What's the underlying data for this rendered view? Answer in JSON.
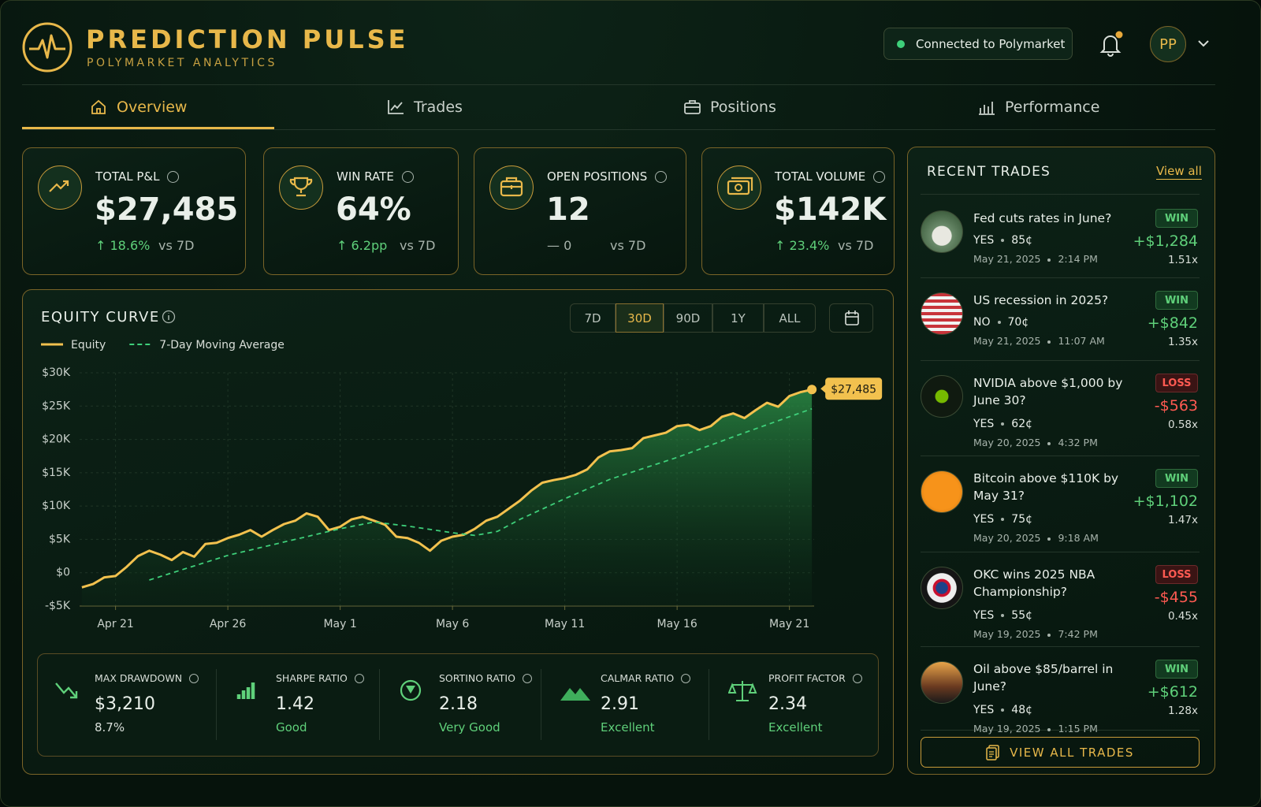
{
  "header": {
    "title": "PREDICTION PULSE",
    "subtitle": "POLYMARKET ANALYTICS",
    "status": "Connected to Polymarket",
    "avatar": "PP"
  },
  "nav": {
    "tabs": [
      "Overview",
      "Trades",
      "Positions",
      "Performance"
    ]
  },
  "kpis": [
    {
      "label": "TOTAL P&L",
      "value": "$27,485",
      "change": "↑ 18.6%",
      "compare": "vs 7D"
    },
    {
      "label": "WIN RATE",
      "value": "64%",
      "change": "↑ 6.2pp",
      "compare": "vs 7D"
    },
    {
      "label": "OPEN POSITIONS",
      "value": "12",
      "change": "— 0",
      "compare": "vs 7D"
    },
    {
      "label": "TOTAL VOLUME",
      "value": "$142K",
      "change": "↑ 23.4%",
      "compare": "vs 7D"
    }
  ],
  "chart_data": {
    "type": "line",
    "title": "EQUITY CURVE",
    "ranges": [
      "7D",
      "30D",
      "90D",
      "1Y",
      "ALL"
    ],
    "selected_range": "30D",
    "xlim": [
      -1.6,
      31.1
    ],
    "xticks": [
      {
        "value": 0,
        "label": "Apr 21"
      },
      {
        "value": 5,
        "label": "Apr 26"
      },
      {
        "value": 10,
        "label": "May 1"
      },
      {
        "value": 15,
        "label": "May 6"
      },
      {
        "value": 20,
        "label": "May 11"
      },
      {
        "value": 25,
        "label": "May 16"
      },
      {
        "value": 30,
        "label": "May 21"
      }
    ],
    "ylim": [
      -5000,
      30000
    ],
    "yticks": [
      {
        "value": -5000,
        "label": "-$5K"
      },
      {
        "value": 0,
        "label": "$0"
      },
      {
        "value": 5000,
        "label": "$5K"
      },
      {
        "value": 10000,
        "label": "$10K"
      },
      {
        "value": 15000,
        "label": "$15K"
      },
      {
        "value": 20000,
        "label": "$20K"
      },
      {
        "value": 25000,
        "label": "$25K"
      },
      {
        "value": 30000,
        "label": "$30K"
      }
    ],
    "grid": true,
    "series": [
      {
        "name": "Equity",
        "color": "#f2c14e",
        "dash": false,
        "area": true,
        "x": [
          -1.5,
          -1,
          -0.5,
          0,
          0.5,
          1,
          1.5,
          2,
          2.5,
          3,
          3.5,
          4,
          4.5,
          5,
          5.5,
          6,
          6.5,
          7,
          7.5,
          8,
          8.5,
          9,
          9.5,
          10,
          10.5,
          11,
          11.5,
          12,
          12.5,
          13,
          13.5,
          14,
          14.5,
          15,
          15.5,
          16,
          16.5,
          17,
          17.5,
          18,
          18.5,
          19,
          19.5,
          20,
          20.5,
          21,
          21.5,
          22,
          22.5,
          23,
          23.5,
          24,
          24.5,
          25,
          25.5,
          26,
          26.5,
          27,
          27.5,
          28,
          28.5,
          29,
          29.5,
          30,
          30.5,
          31
        ],
        "values": [
          -2200,
          -1700,
          -700,
          -500,
          900,
          2500,
          3300,
          2700,
          1900,
          3100,
          2400,
          4300,
          4500,
          5200,
          5700,
          6400,
          5400,
          6400,
          7300,
          7800,
          8900,
          8400,
          6400,
          6900,
          8000,
          8400,
          7800,
          7200,
          5400,
          5200,
          4500,
          3300,
          4800,
          5400,
          5700,
          6600,
          7800,
          8400,
          9600,
          10800,
          12300,
          13500,
          13900,
          14200,
          14700,
          15500,
          17300,
          18200,
          18400,
          18700,
          20200,
          20600,
          21000,
          22000,
          22200,
          21400,
          22000,
          23400,
          23900,
          23200,
          24400,
          25500,
          24900,
          26500,
          27100,
          27485
        ]
      },
      {
        "name": "7-Day Moving Average",
        "color": "#3ecf7a",
        "dash": true,
        "area": false,
        "x": [
          1.5,
          5,
          8,
          10,
          11.5,
          13,
          15,
          16,
          17,
          18,
          20,
          22,
          25,
          28,
          31
        ],
        "values": [
          -1100,
          2600,
          5000,
          6600,
          7600,
          7000,
          6000,
          5600,
          6200,
          8000,
          11100,
          14000,
          17300,
          21000,
          24600
        ]
      }
    ],
    "end_label": "$27,485"
  },
  "metrics": [
    {
      "label": "MAX DRAWDOWN",
      "value": "$3,210",
      "note": "8.7%"
    },
    {
      "label": "SHARPE RATIO",
      "value": "1.42",
      "note": "Good"
    },
    {
      "label": "SORTINO RATIO",
      "value": "2.18",
      "note": "Very Good"
    },
    {
      "label": "CALMAR RATIO",
      "value": "2.91",
      "note": "Excellent"
    },
    {
      "label": "PROFIT FACTOR",
      "value": "2.34",
      "note": "Excellent"
    }
  ],
  "recent_trades": {
    "title": "RECENT TRADES",
    "view_all": "View all",
    "button": "VIEW ALL TRADES",
    "items": [
      {
        "market": "Fed cuts rates in June?",
        "side": "YES",
        "price": "85¢",
        "date": "May 21, 2025",
        "time": "2:14 PM",
        "result": "WIN",
        "pnl": "+$1,284",
        "multiple": "1.51x"
      },
      {
        "market": "US recession in 2025?",
        "side": "NO",
        "price": "70¢",
        "date": "May 21, 2025",
        "time": "11:07 AM",
        "result": "WIN",
        "pnl": "+$842",
        "multiple": "1.35x"
      },
      {
        "market": "NVIDIA above $1,000 by June 30?",
        "side": "YES",
        "price": "62¢",
        "date": "May 20, 2025",
        "time": "4:32 PM",
        "result": "LOSS",
        "pnl": "-$563",
        "multiple": "0.58x"
      },
      {
        "market": "Bitcoin above $110K by May 31?",
        "side": "YES",
        "price": "75¢",
        "date": "May 20, 2025",
        "time": "9:18 AM",
        "result": "WIN",
        "pnl": "+$1,102",
        "multiple": "1.47x"
      },
      {
        "market": "OKC wins 2025 NBA Championship?",
        "side": "YES",
        "price": "55¢",
        "date": "May 19, 2025",
        "time": "7:42 PM",
        "result": "LOSS",
        "pnl": "-$455",
        "multiple": "0.45x"
      },
      {
        "market": "Oil above $85/barrel in June?",
        "side": "YES",
        "price": "48¢",
        "date": "May 19, 2025",
        "time": "1:15 PM",
        "result": "WIN",
        "pnl": "+$612",
        "multiple": "1.28x"
      }
    ]
  }
}
